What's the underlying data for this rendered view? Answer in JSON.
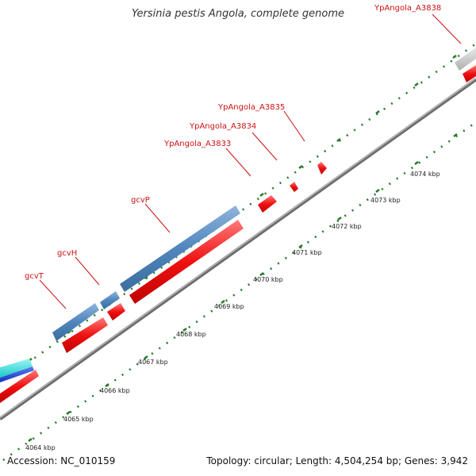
{
  "title": "Yersinia pestis Angola, complete genome",
  "footer": {
    "accession": "Accession: NC_010159",
    "summary": "Topology: circular; Length: 4,504,254 bp; Genes: 3,942"
  },
  "colors": {
    "forward_gene": "#4f86bd",
    "reverse_gene": "#ee1111",
    "backbone": "#8f8f8f",
    "ticks": "#2a7a2a",
    "label": "#cc1111",
    "cyan_gene": "#22dddd",
    "navy_gene": "#1d3fd0",
    "gray_gene": "#c8c8c8"
  },
  "kbp_labels": [
    "4064 kbp",
    "4065 kbp",
    "4066 kbp",
    "4067 kbp",
    "4068 kbp",
    "4069 kbp",
    "4070 kbp",
    "4071 kbp",
    "4072 kbp",
    "4073 kbp",
    "4074 kbp"
  ],
  "gene_labels": [
    "gcvT",
    "gcvH",
    "gcvP",
    "YpAngola_A3833",
    "YpAngola_A3834",
    "YpAngola_A3835",
    "YpAngola_A3838"
  ]
}
